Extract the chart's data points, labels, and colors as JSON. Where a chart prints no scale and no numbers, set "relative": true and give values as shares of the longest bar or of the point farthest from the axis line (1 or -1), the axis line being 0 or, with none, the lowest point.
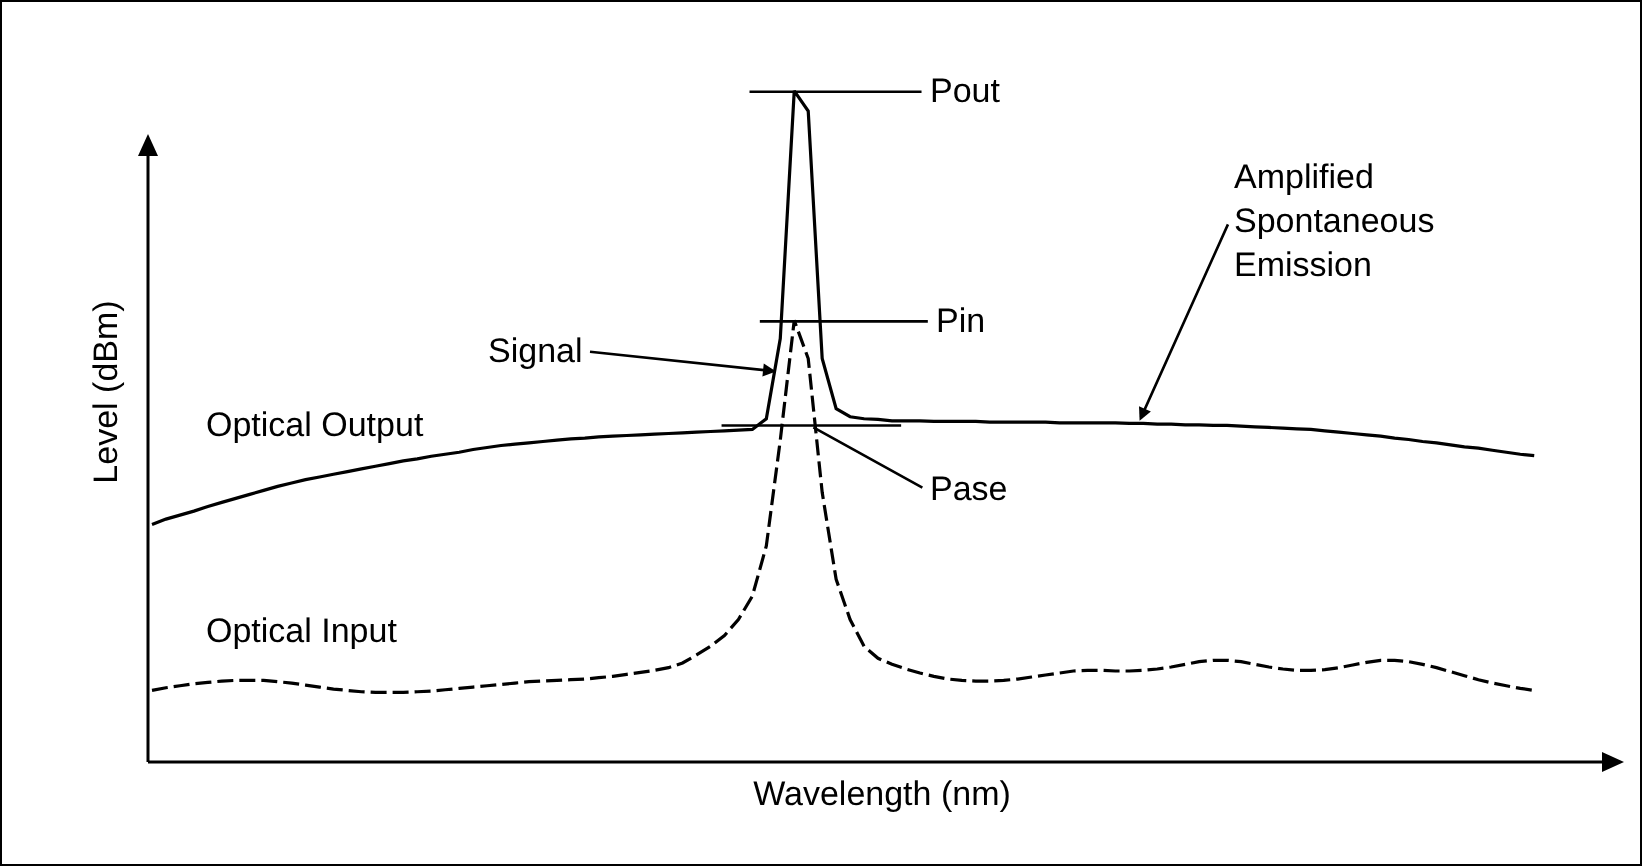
{
  "chart_data": {
    "type": "line",
    "relative": true,
    "xlabel": "Wavelength (nm)",
    "ylabel": "Level (dBm)",
    "categories": [
      null,
      null,
      null,
      null,
      null,
      null,
      null,
      null,
      null,
      null,
      null,
      null,
      null,
      null,
      null,
      null,
      null,
      null,
      null,
      null,
      null,
      null,
      null,
      null,
      null,
      null,
      null,
      null,
      null,
      null,
      null,
      null,
      null,
      null,
      null,
      null,
      null,
      null,
      null,
      null,
      null,
      null,
      null,
      null,
      null,
      null,
      null,
      null,
      null,
      null,
      null,
      null,
      null,
      null,
      null,
      null,
      null,
      null,
      null,
      null,
      null,
      null,
      null,
      null,
      null,
      null,
      null,
      null,
      null,
      null,
      null,
      null,
      null,
      null,
      null,
      null,
      null,
      null,
      null,
      null,
      null,
      null,
      null,
      null,
      null,
      null,
      null,
      null,
      null,
      null,
      null,
      null,
      null,
      null,
      null,
      null,
      null,
      null,
      null,
      null
    ],
    "series": [
      {
        "name": "Optical Output",
        "color": "#000000",
        "line_style": "solid",
        "values": [
          0.352,
          0.36,
          0.366,
          0.372,
          0.379,
          0.385,
          0.391,
          0.397,
          0.403,
          0.409,
          0.414,
          0.419,
          0.423,
          0.427,
          0.431,
          0.435,
          0.439,
          0.443,
          0.447,
          0.45,
          0.454,
          0.457,
          0.46,
          0.464,
          0.467,
          0.47,
          0.472,
          0.474,
          0.476,
          0.478,
          0.48,
          0.481,
          0.483,
          0.484,
          0.485,
          0.486,
          0.487,
          0.488,
          0.489,
          0.49,
          0.491,
          0.492,
          0.493,
          0.494,
          0.51,
          0.63,
          1.0,
          0.97,
          0.6,
          0.525,
          0.513,
          0.51,
          0.509,
          0.507,
          0.507,
          0.507,
          0.506,
          0.506,
          0.506,
          0.506,
          0.505,
          0.505,
          0.505,
          0.505,
          0.505,
          0.504,
          0.504,
          0.504,
          0.504,
          0.504,
          0.503,
          0.503,
          0.502,
          0.502,
          0.501,
          0.501,
          0.5,
          0.5,
          0.499,
          0.498,
          0.497,
          0.496,
          0.495,
          0.494,
          0.492,
          0.49,
          0.488,
          0.486,
          0.484,
          0.481,
          0.479,
          0.476,
          0.474,
          0.471,
          0.468,
          0.466,
          0.463,
          0.46,
          0.457,
          0.455
        ]
      },
      {
        "name": "Optical Input",
        "color": "#000000",
        "line_style": "dashed",
        "values": [
          0.104,
          0.108,
          0.111,
          0.114,
          0.116,
          0.118,
          0.119,
          0.119,
          0.119,
          0.117,
          0.115,
          0.112,
          0.109,
          0.106,
          0.104,
          0.102,
          0.101,
          0.101,
          0.101,
          0.102,
          0.103,
          0.105,
          0.107,
          0.109,
          0.111,
          0.113,
          0.115,
          0.117,
          0.118,
          0.119,
          0.12,
          0.121,
          0.123,
          0.125,
          0.128,
          0.131,
          0.134,
          0.138,
          0.145,
          0.157,
          0.17,
          0.186,
          0.21,
          0.245,
          0.32,
          0.478,
          0.657,
          0.6,
          0.4,
          0.27,
          0.21,
          0.17,
          0.152,
          0.143,
          0.136,
          0.13,
          0.125,
          0.121,
          0.119,
          0.118,
          0.118,
          0.119,
          0.121,
          0.124,
          0.127,
          0.13,
          0.133,
          0.134,
          0.134,
          0.133,
          0.133,
          0.134,
          0.136,
          0.139,
          0.143,
          0.147,
          0.149,
          0.149,
          0.147,
          0.143,
          0.139,
          0.136,
          0.134,
          0.134,
          0.135,
          0.138,
          0.142,
          0.146,
          0.149,
          0.149,
          0.147,
          0.143,
          0.138,
          0.132,
          0.126,
          0.12,
          0.115,
          0.111,
          0.107,
          0.104
        ]
      }
    ],
    "ref_lines": [
      {
        "axis": "y",
        "value": 0.5,
        "label": "Pase"
      }
    ],
    "annotations": [
      "Pout",
      "Pin",
      "Signal",
      "Amplified Spontaneous Emission"
    ]
  }
}
